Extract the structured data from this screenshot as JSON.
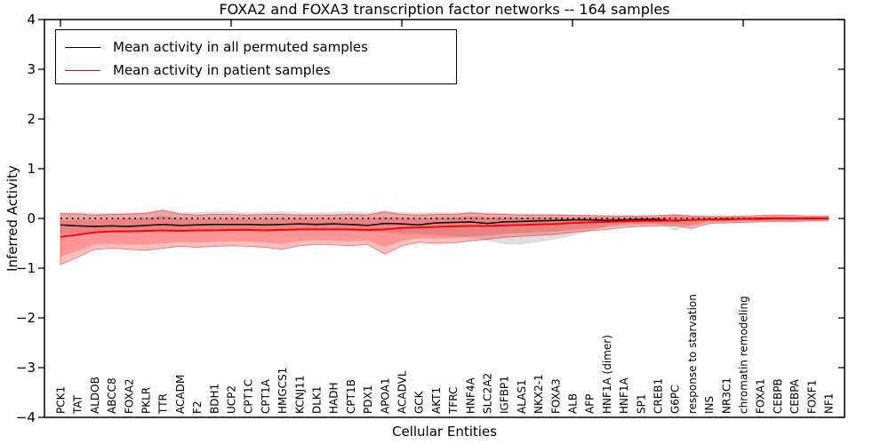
{
  "title": "FOXA2 and FOXA3 transcription factor networks -- 164 samples",
  "legend": {
    "items": [
      {
        "label": "Mean activity in all permuted samples",
        "color": "#000000"
      },
      {
        "label": "Mean activity in patient samples",
        "color": "#ff0000"
      }
    ]
  },
  "axes": {
    "ylabel": "Inferred Activity",
    "xlabel": "Cellular Entities",
    "yticks": [
      "4",
      "3",
      "2",
      "1",
      "0",
      "−1",
      "−2",
      "−3",
      "−4"
    ],
    "ytick_values": [
      4,
      3,
      2,
      1,
      0,
      -1,
      -2,
      -3,
      -4
    ],
    "ylim": [
      -4,
      4
    ]
  },
  "chart_data": {
    "type": "line",
    "title": "FOXA2 and FOXA3 transcription factor networks -- 164 samples",
    "xlabel": "Cellular Entities",
    "ylabel": "Inferred Activity",
    "ylim": [
      -4,
      4
    ],
    "grid": false,
    "legend_position": "upper left",
    "zero_reference_line": 0,
    "xticks_at_indices": [
      0,
      10,
      20,
      30,
      40
    ],
    "categories": [
      "PCK1",
      "TAT",
      "ALDOB",
      "ABCC8",
      "FOXA2",
      "PKLR",
      "TTR",
      "ACADM",
      "F2",
      "BDH1",
      "UCP2",
      "CPT1C",
      "CPT1A",
      "HMGCS1",
      "KCNJ11",
      "DLK1",
      "HADH",
      "CPT1B",
      "PDX1",
      "APOA1",
      "ACADVL",
      "GCK",
      "AKT1",
      "TFRC",
      "HNF4A",
      "SLC2A2",
      "IGFBP1",
      "ALAS1",
      "NKX2-1",
      "FOXA3",
      "ALB",
      "AFP",
      "HNF1A (dimer)",
      "HNF1A",
      "SP1",
      "CREB1",
      "G6PC",
      "response to starvation",
      "INS",
      "NR3C1",
      "chromatin remodeling",
      "FOXA1",
      "CEBPB",
      "CEBPA",
      "FOXF1",
      "NF1"
    ],
    "series": [
      {
        "name": "Mean activity in all permuted samples",
        "color": "#000000",
        "band_color": "#888888",
        "values": [
          -0.13,
          -0.15,
          -0.16,
          -0.15,
          -0.16,
          -0.14,
          -0.12,
          -0.14,
          -0.13,
          -0.12,
          -0.12,
          -0.12,
          -0.13,
          -0.12,
          -0.11,
          -0.12,
          -0.11,
          -0.12,
          -0.14,
          -0.1,
          -0.11,
          -0.13,
          -0.09,
          -0.08,
          -0.07,
          -0.1,
          -0.07,
          -0.06,
          -0.05,
          -0.04,
          -0.03,
          -0.03,
          -0.04,
          -0.03,
          -0.02,
          -0.02,
          -0.05,
          -0.03,
          -0.02,
          -0.01,
          -0.01,
          0.0,
          0.0,
          0.0,
          0.0,
          0.0
        ],
        "band_upper": [
          0.12,
          0.13,
          0.12,
          0.11,
          0.12,
          0.13,
          0.16,
          0.12,
          0.13,
          0.14,
          0.14,
          0.12,
          0.13,
          0.14,
          0.12,
          0.12,
          0.13,
          0.14,
          0.12,
          0.16,
          0.13,
          0.12,
          0.13,
          0.12,
          0.14,
          0.12,
          0.11,
          0.1,
          0.1,
          0.09,
          0.08,
          0.07,
          0.06,
          0.06,
          0.05,
          0.05,
          0.1,
          0.06,
          0.04,
          0.04,
          0.04,
          0.04,
          0.04,
          0.04,
          0.04,
          0.04
        ],
        "band_lower": [
          -0.3,
          -0.3,
          -0.28,
          -0.27,
          -0.28,
          -0.27,
          -0.26,
          -0.27,
          -0.26,
          -0.25,
          -0.25,
          -0.25,
          -0.26,
          -0.25,
          -0.24,
          -0.24,
          -0.24,
          -0.25,
          -0.26,
          -0.28,
          -0.3,
          -0.32,
          -0.34,
          -0.36,
          -0.38,
          -0.45,
          -0.52,
          -0.52,
          -0.48,
          -0.42,
          -0.35,
          -0.25,
          -0.16,
          -0.11,
          -0.1,
          -0.1,
          -0.25,
          -0.12,
          -0.06,
          -0.06,
          -0.05,
          -0.05,
          -0.05,
          -0.05,
          -0.04,
          -0.04
        ]
      },
      {
        "name": "Mean activity in patient samples",
        "color": "#ff0000",
        "band_color": "#ff0000",
        "values": [
          -0.37,
          -0.33,
          -0.28,
          -0.26,
          -0.26,
          -0.25,
          -0.24,
          -0.25,
          -0.24,
          -0.24,
          -0.23,
          -0.23,
          -0.24,
          -0.23,
          -0.22,
          -0.22,
          -0.22,
          -0.22,
          -0.23,
          -0.22,
          -0.19,
          -0.18,
          -0.17,
          -0.16,
          -0.15,
          -0.15,
          -0.14,
          -0.13,
          -0.12,
          -0.11,
          -0.09,
          -0.08,
          -0.07,
          -0.06,
          -0.05,
          -0.05,
          -0.04,
          -0.03,
          -0.02,
          -0.02,
          -0.01,
          -0.01,
          0.0,
          0.0,
          0.0,
          0.0
        ],
        "band_upper": [
          0.1,
          0.09,
          0.07,
          0.08,
          0.09,
          0.1,
          0.17,
          0.09,
          0.07,
          0.08,
          0.08,
          0.07,
          0.08,
          0.08,
          0.07,
          0.07,
          0.07,
          0.08,
          0.07,
          0.13,
          0.08,
          0.07,
          0.08,
          0.08,
          0.11,
          0.09,
          0.08,
          0.07,
          0.07,
          0.07,
          0.06,
          0.06,
          0.05,
          0.05,
          0.05,
          0.06,
          0.07,
          0.05,
          0.04,
          0.04,
          0.05,
          0.06,
          0.07,
          0.06,
          0.05,
          0.05
        ],
        "band_lower": [
          -0.93,
          -0.78,
          -0.62,
          -0.6,
          -0.62,
          -0.64,
          -0.6,
          -0.56,
          -0.58,
          -0.56,
          -0.55,
          -0.56,
          -0.58,
          -0.62,
          -0.55,
          -0.52,
          -0.53,
          -0.55,
          -0.52,
          -0.72,
          -0.55,
          -0.48,
          -0.5,
          -0.49,
          -0.45,
          -0.42,
          -0.38,
          -0.36,
          -0.34,
          -0.32,
          -0.28,
          -0.25,
          -0.22,
          -0.18,
          -0.16,
          -0.15,
          -0.14,
          -0.2,
          -0.1,
          -0.09,
          -0.08,
          -0.07,
          -0.06,
          -0.06,
          -0.05,
          -0.04
        ]
      }
    ]
  }
}
